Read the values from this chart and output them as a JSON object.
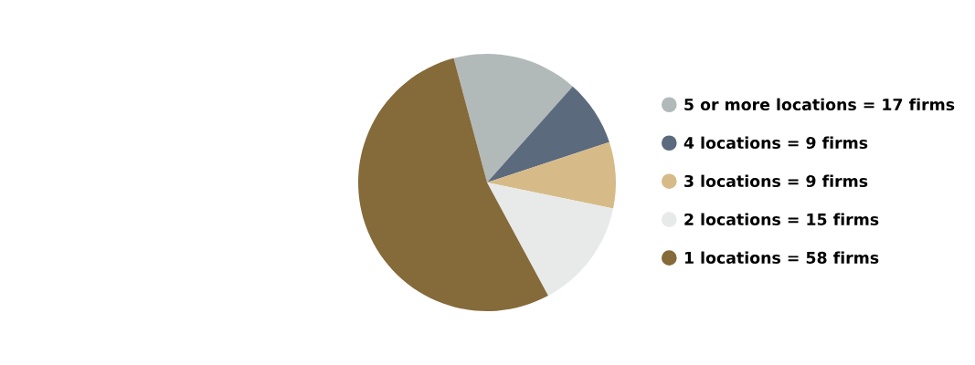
{
  "chart_data": {
    "type": "pie",
    "categories": [
      "5 or more locations = 17 firms",
      "4 locations = 9 firms",
      "3 locations = 9 firms",
      "2 locations = 15 firms",
      "1 locations = 58 firms"
    ],
    "values": [
      17,
      9,
      9,
      15,
      58
    ],
    "colors": [
      "#b2bab9",
      "#5c6a7e",
      "#d6bb88",
      "#e8eae9",
      "#856a3a"
    ],
    "legend": "right"
  }
}
